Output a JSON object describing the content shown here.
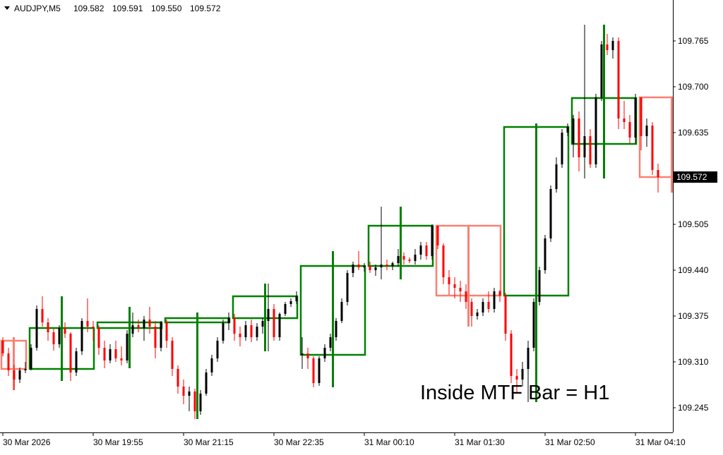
{
  "chart_data": {
    "type": "candlestick",
    "symbol": "AUDJPY,M5",
    "last_bar_labels": [
      "109.582",
      "109.591",
      "109.550",
      "109.572"
    ],
    "annotation": "Inside MTF Bar = H1",
    "up_color": "#000000",
    "down_color": "#ff0000",
    "h1_up_color": "#008000",
    "h1_down_color": "#fa8072",
    "ylim": [
      109.21,
      109.823
    ],
    "yticks": [
      109.245,
      {
        "value": 109.31,
        "label": "109.310"
      },
      109.375,
      {
        "value": 109.44,
        "label": "109.440"
      },
      109.505,
      109.635,
      {
        "value": 109.7,
        "label": "109.700"
      },
      109.765
    ],
    "categories": [
      "30 Mar 2026",
      null,
      null,
      null,
      null,
      null,
      null,
      null,
      null,
      null,
      null,
      null,
      null,
      null,
      null,
      null,
      "30 Mar 19:55",
      null,
      null,
      null,
      null,
      null,
      null,
      null,
      null,
      null,
      null,
      null,
      null,
      null,
      null,
      null,
      "30 Mar 21:15",
      null,
      null,
      null,
      null,
      null,
      null,
      null,
      null,
      null,
      null,
      null,
      null,
      null,
      null,
      null,
      "30 Mar 22:35",
      null,
      null,
      null,
      null,
      null,
      null,
      null,
      null,
      null,
      null,
      null,
      null,
      null,
      null,
      null,
      "31 Mar 00:10",
      null,
      null,
      null,
      null,
      null,
      null,
      null,
      null,
      null,
      null,
      null,
      null,
      null,
      null,
      null,
      "31 Mar 01:30",
      null,
      null,
      null,
      null,
      null,
      null,
      null,
      null,
      null,
      null,
      null,
      null,
      null,
      null,
      null,
      "31 Mar 02:50",
      null,
      null,
      null,
      null,
      null,
      null,
      null,
      null,
      null,
      null,
      null,
      null,
      null,
      null,
      null,
      "31 Mar 04:10",
      null,
      null,
      null,
      null
    ],
    "ohlc": [
      [
        109.34,
        109.345,
        109.318,
        109.322
      ],
      [
        109.322,
        109.33,
        109.29,
        109.298
      ],
      [
        109.298,
        109.306,
        109.27,
        109.285
      ],
      [
        109.285,
        109.302,
        109.28,
        109.298
      ],
      [
        109.298,
        109.31,
        109.294,
        109.3
      ],
      [
        109.3,
        109.335,
        109.298,
        109.33
      ],
      [
        109.33,
        109.39,
        109.326,
        109.385
      ],
      [
        109.385,
        109.403,
        109.36,
        109.366
      ],
      [
        109.366,
        109.372,
        109.34,
        109.352
      ],
      [
        109.352,
        109.358,
        109.326,
        109.335
      ],
      [
        109.335,
        109.362,
        109.33,
        109.358
      ],
      [
        109.358,
        109.366,
        109.344,
        109.35
      ],
      [
        109.35,
        109.352,
        109.283,
        109.295
      ],
      [
        109.295,
        109.33,
        109.29,
        109.325
      ],
      [
        109.325,
        109.372,
        109.32,
        109.368
      ],
      [
        109.368,
        109.4,
        109.352,
        109.36
      ],
      [
        109.36,
        109.368,
        109.34,
        109.358
      ],
      [
        109.358,
        109.362,
        109.32,
        109.33
      ],
      [
        109.33,
        109.34,
        109.301,
        109.312
      ],
      [
        109.312,
        109.335,
        109.308,
        109.328
      ],
      [
        109.328,
        109.34,
        109.31,
        109.315
      ],
      [
        109.315,
        109.332,
        109.305,
        109.312
      ],
      [
        109.312,
        109.355,
        109.308,
        109.35
      ],
      [
        109.35,
        109.38,
        109.345,
        109.362
      ],
      [
        109.362,
        109.37,
        109.352,
        109.358
      ],
      [
        109.358,
        109.375,
        109.34,
        109.37
      ],
      [
        109.37,
        109.388,
        109.35,
        109.36
      ],
      [
        109.36,
        109.368,
        109.315,
        109.33
      ],
      [
        109.33,
        109.368,
        109.325,
        109.366
      ],
      [
        109.366,
        109.37,
        109.33,
        109.34
      ],
      [
        109.34,
        109.345,
        109.29,
        109.3
      ],
      [
        109.3,
        109.305,
        109.265,
        109.275
      ],
      [
        109.275,
        109.285,
        109.25,
        109.262
      ],
      [
        109.262,
        109.275,
        109.24,
        109.268
      ],
      [
        109.268,
        109.272,
        109.229,
        109.24
      ],
      [
        109.24,
        109.27,
        109.235,
        109.265
      ],
      [
        109.265,
        109.3,
        109.262,
        109.295
      ],
      [
        109.295,
        109.32,
        109.29,
        109.315
      ],
      [
        109.315,
        109.345,
        109.31,
        109.34
      ],
      [
        109.34,
        109.37,
        109.336,
        109.365
      ],
      [
        109.365,
        109.38,
        109.355,
        109.372
      ],
      [
        109.372,
        109.378,
        109.34,
        109.35
      ],
      [
        109.35,
        109.36,
        109.332,
        109.345
      ],
      [
        109.345,
        109.368,
        109.34,
        109.362
      ],
      [
        109.362,
        109.37,
        109.338,
        109.345
      ],
      [
        109.345,
        109.365,
        109.34,
        109.36
      ],
      [
        109.36,
        109.372,
        109.35,
        109.368
      ],
      [
        109.368,
        109.421,
        109.325,
        109.385
      ],
      [
        109.385,
        109.392,
        109.34,
        109.345
      ],
      [
        109.345,
        109.38,
        109.34,
        109.378
      ],
      [
        109.378,
        109.395,
        109.375,
        109.392
      ],
      [
        109.392,
        109.4,
        109.388,
        109.396
      ],
      [
        109.396,
        109.41,
        109.392,
        109.403
      ],
      [
        109.32,
        109.345,
        109.3,
        109.322
      ],
      [
        109.322,
        109.33,
        109.3,
        109.315
      ],
      [
        109.315,
        109.318,
        109.274,
        109.28
      ],
      [
        109.28,
        109.318,
        109.276,
        109.315
      ],
      [
        109.315,
        109.335,
        109.31,
        109.33
      ],
      [
        109.33,
        109.35,
        109.325,
        109.345
      ],
      [
        109.345,
        109.372,
        109.34,
        109.368
      ],
      [
        109.368,
        109.4,
        109.365,
        109.395
      ],
      [
        109.395,
        109.44,
        109.39,
        109.436
      ],
      [
        109.436,
        109.452,
        109.43,
        109.448
      ],
      [
        109.448,
        109.467,
        109.44,
        109.444
      ],
      [
        109.444,
        109.45,
        109.438,
        109.446
      ],
      [
        109.446,
        109.452,
        109.436,
        109.44
      ],
      [
        109.44,
        109.448,
        109.432,
        109.444
      ],
      [
        109.444,
        109.53,
        109.427,
        109.448
      ],
      [
        109.448,
        109.455,
        109.44,
        109.446
      ],
      [
        109.446,
        109.452,
        109.44,
        109.45
      ],
      [
        109.45,
        109.47,
        109.445,
        109.46
      ],
      [
        109.46,
        109.465,
        109.448,
        109.455
      ],
      [
        109.455,
        109.458,
        109.45,
        109.453
      ],
      [
        109.453,
        109.47,
        109.448,
        109.462
      ],
      [
        109.462,
        109.48,
        109.455,
        109.475
      ],
      [
        109.475,
        109.48,
        109.455,
        109.46
      ],
      [
        109.46,
        109.505,
        109.455,
        109.503
      ],
      [
        109.503,
        109.503,
        109.47,
        109.475
      ],
      [
        109.475,
        109.478,
        109.42,
        109.43
      ],
      [
        109.43,
        109.44,
        109.405,
        109.42
      ],
      [
        109.42,
        109.43,
        109.4,
        109.415
      ],
      [
        109.415,
        109.425,
        109.395,
        109.41
      ],
      [
        109.41,
        109.42,
        109.385,
        109.395
      ],
      [
        109.395,
        109.4,
        109.36,
        109.375
      ],
      [
        109.375,
        109.385,
        109.37,
        109.38
      ],
      [
        109.38,
        109.4,
        109.375,
        109.395
      ],
      [
        109.395,
        109.41,
        109.38,
        109.385
      ],
      [
        109.385,
        109.415,
        109.38,
        109.41
      ],
      [
        109.41,
        109.412,
        109.395,
        109.404
      ],
      [
        109.404,
        109.408,
        109.34,
        109.35
      ],
      [
        109.35,
        109.355,
        109.28,
        109.29
      ],
      [
        109.29,
        109.3,
        109.265,
        109.285
      ],
      [
        109.285,
        109.31,
        109.275,
        109.3
      ],
      [
        109.3,
        109.34,
        109.253,
        109.33
      ],
      [
        109.33,
        109.4,
        109.325,
        109.395
      ],
      [
        109.395,
        109.445,
        109.39,
        109.44
      ],
      [
        109.44,
        109.49,
        109.435,
        109.485
      ],
      [
        109.485,
        109.56,
        109.48,
        109.555
      ],
      [
        109.555,
        109.6,
        109.55,
        109.59
      ],
      [
        109.59,
        109.64,
        109.585,
        109.635
      ],
      [
        109.635,
        109.648,
        109.63,
        109.643
      ],
      [
        109.619,
        109.66,
        109.6,
        109.655
      ],
      [
        109.655,
        109.665,
        109.58,
        109.6
      ],
      [
        109.6,
        109.788,
        109.57,
        109.63
      ],
      [
        109.63,
        109.64,
        109.585,
        109.59
      ],
      [
        109.59,
        109.69,
        109.585,
        109.685
      ],
      [
        109.685,
        109.765,
        109.68,
        109.76
      ],
      [
        109.76,
        109.775,
        109.745,
        109.752
      ],
      [
        109.752,
        109.77,
        109.74,
        109.765
      ],
      [
        109.765,
        109.77,
        109.64,
        109.655
      ],
      [
        109.655,
        109.68,
        109.64,
        109.65
      ],
      [
        109.65,
        109.66,
        109.62,
        109.628
      ],
      [
        109.628,
        109.69,
        109.62,
        109.684
      ],
      [
        109.685,
        109.685,
        109.61,
        109.63
      ],
      [
        109.63,
        109.655,
        109.615,
        109.645
      ],
      [
        109.645,
        109.65,
        109.575,
        109.582
      ],
      [
        109.582,
        109.591,
        109.55,
        109.572
      ]
    ],
    "h1_ohlc": [
      [
        109.34,
        109.345,
        109.27,
        109.3
      ],
      [
        109.3,
        109.403,
        109.283,
        109.358
      ],
      [
        109.358,
        109.388,
        109.301,
        109.366
      ],
      [
        109.366,
        109.38,
        109.229,
        109.372
      ],
      [
        109.372,
        109.421,
        109.325,
        109.403
      ],
      [
        109.32,
        109.467,
        109.274,
        109.446
      ],
      [
        109.446,
        109.53,
        109.427,
        109.503
      ],
      [
        109.503,
        109.503,
        109.36,
        109.404
      ],
      [
        109.404,
        109.648,
        109.253,
        109.643
      ],
      [
        109.619,
        109.788,
        109.57,
        109.684
      ],
      [
        109.685,
        109.685,
        109.55,
        109.572
      ]
    ]
  }
}
